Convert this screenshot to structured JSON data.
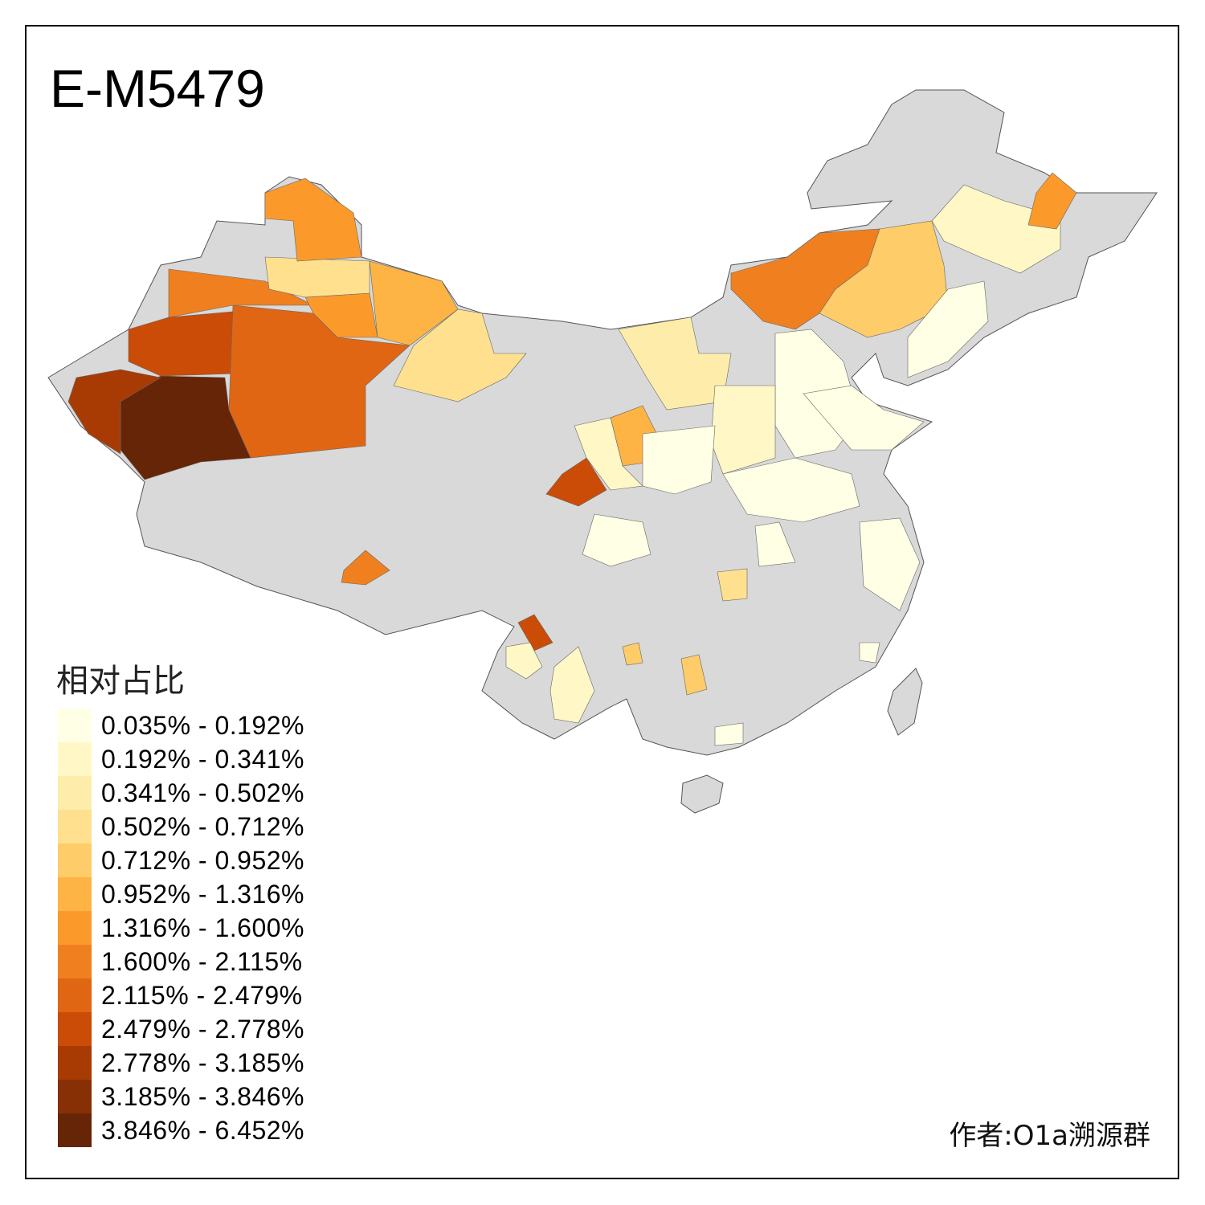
{
  "title": "E-M5479",
  "legend": {
    "title": "相对占比",
    "bins": [
      {
        "label": "0.035% - 0.192%",
        "color": "#FFFFE5"
      },
      {
        "label": "0.192% - 0.341%",
        "color": "#FFF7C6"
      },
      {
        "label": "0.341% - 0.502%",
        "color": "#FEEDAA"
      },
      {
        "label": "0.502% - 0.712%",
        "color": "#FEE08F"
      },
      {
        "label": "0.712% - 0.952%",
        "color": "#FECC68"
      },
      {
        "label": "0.952% - 1.316%",
        "color": "#FEB445"
      },
      {
        "label": "1.316% - 1.600%",
        "color": "#FB9A2B"
      },
      {
        "label": "1.600% - 2.115%",
        "color": "#F0801F"
      },
      {
        "label": "2.115% - 2.479%",
        "color": "#E06614"
      },
      {
        "label": "2.479% - 2.778%",
        "color": "#CB4C06"
      },
      {
        "label": "2.778% - 3.185%",
        "color": "#A83B04"
      },
      {
        "label": "3.185% - 3.846%",
        "color": "#872F05"
      },
      {
        "label": "3.846% - 6.452%",
        "color": "#662506"
      }
    ]
  },
  "no_data_color": "#D9D9D9",
  "author": "作者:O1a溯源群"
}
